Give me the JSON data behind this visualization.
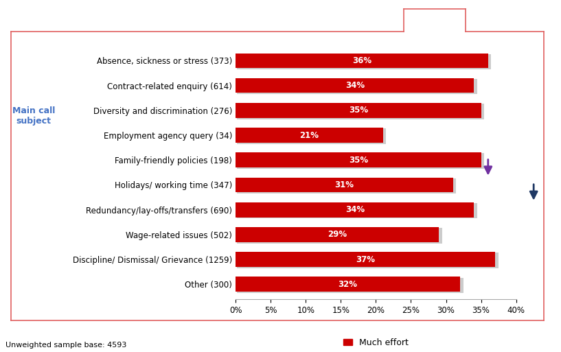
{
  "categories": [
    "Other (300)",
    "Discipline/ Dismissal/ Grievance (1259)",
    "Wage-related issues (502)",
    "Redundancy/lay-offs/transfers (690)",
    "Holidays/ working time (347)",
    "Family-friendly policies (198)",
    "Employment agency query (34)",
    "Diversity and discrimination (276)",
    "Contract-related enquiry (614)",
    "Absence, sickness or stress (373)"
  ],
  "values": [
    32,
    37,
    29,
    34,
    31,
    35,
    21,
    35,
    34,
    36
  ],
  "bar_color": "#cc0000",
  "text_color": "#ffffff",
  "xlim": [
    0,
    40
  ],
  "xticks": [
    0,
    5,
    10,
    15,
    20,
    25,
    30,
    35,
    40
  ],
  "xtick_labels": [
    "0%",
    "5%",
    "10%",
    "15%",
    "20%",
    "25%",
    "30%",
    "35%",
    "40%"
  ],
  "legend_label": "Much effort",
  "footnote": "Unweighted sample base: 4593",
  "border_color": "#e06060",
  "ylabel_text": "Main call\nsubject",
  "ylabel_color": "#4472c4",
  "down_arrow_color": "#7030a0",
  "up_arrow_color": "#1f3864",
  "bar_height": 0.6,
  "label_fontsize": 8.5,
  "value_fontsize": 8.5
}
